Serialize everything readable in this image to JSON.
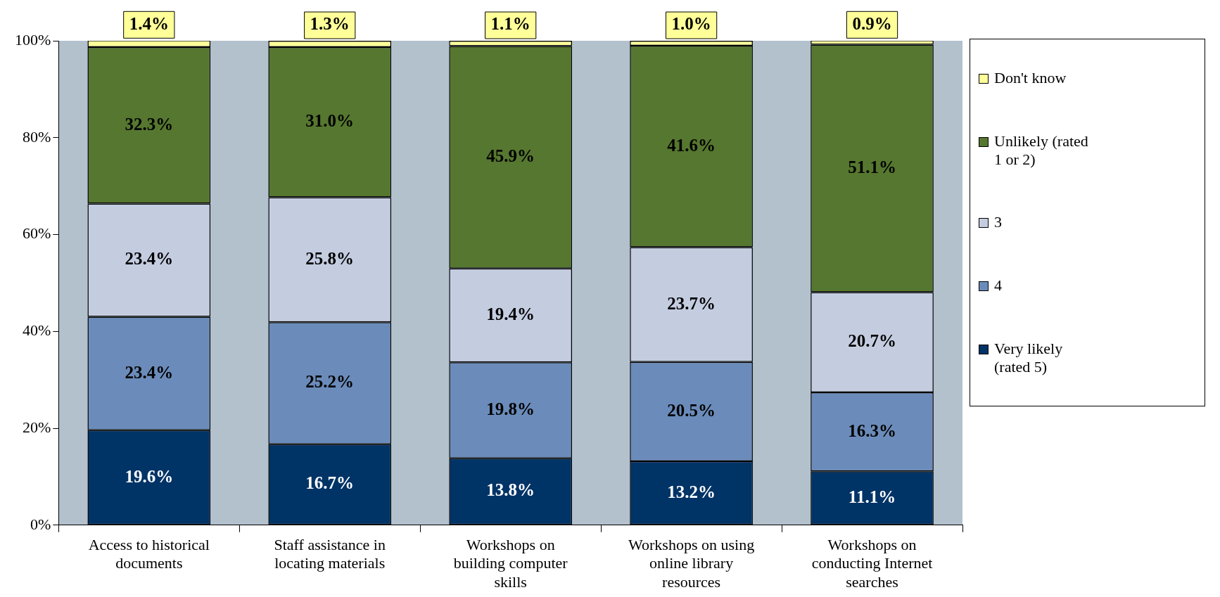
{
  "chart_data": {
    "type": "bar",
    "stacked": true,
    "categories": [
      "Access to historical documents",
      "Staff assistance in locating materials",
      "Workshops on building computer skills",
      "Workshops on using online library resources",
      "Workshops on conducting Internet searches"
    ],
    "series": [
      {
        "name": "Very likely (rated 5)",
        "color": "#003366",
        "values": [
          19.6,
          16.7,
          13.8,
          13.2,
          11.1
        ],
        "value_labels": [
          "19.6%",
          "16.7%",
          "13.8%",
          "13.2%",
          "11.1%"
        ]
      },
      {
        "name": "4",
        "color": "#6b8cba",
        "values": [
          23.4,
          25.2,
          19.8,
          20.5,
          16.3
        ],
        "value_labels": [
          "23.4%",
          "25.2%",
          "19.8%",
          "20.5%",
          "16.3%"
        ]
      },
      {
        "name": "3",
        "color": "#c4cde0",
        "values": [
          23.4,
          25.8,
          19.4,
          23.7,
          20.7
        ],
        "value_labels": [
          "23.4%",
          "25.8%",
          "19.4%",
          "23.7%",
          "20.7%"
        ]
      },
      {
        "name": "Unlikely (rated 1 or 2)",
        "color": "#56772f",
        "values": [
          32.3,
          31.0,
          45.9,
          41.6,
          51.1
        ],
        "value_labels": [
          "32.3%",
          "31.0%",
          "45.9%",
          "41.6%",
          "51.1%"
        ]
      },
      {
        "name": "Don't know",
        "color": "#ffff99",
        "values": [
          1.4,
          1.3,
          1.1,
          1.0,
          0.9
        ],
        "value_labels": [
          "1.4%",
          "1.3%",
          "1.1%",
          "1.0%",
          "0.9%"
        ]
      }
    ],
    "ylim": [
      0,
      100
    ],
    "yticks": [
      {
        "value": 0,
        "label": "0%"
      },
      {
        "value": 20,
        "label": "20%"
      },
      {
        "value": 40,
        "label": "40%"
      },
      {
        "value": 60,
        "label": "60%"
      },
      {
        "value": 80,
        "label": "80%"
      },
      {
        "value": 100,
        "label": "100%"
      }
    ],
    "grid": false,
    "legend": "right"
  }
}
